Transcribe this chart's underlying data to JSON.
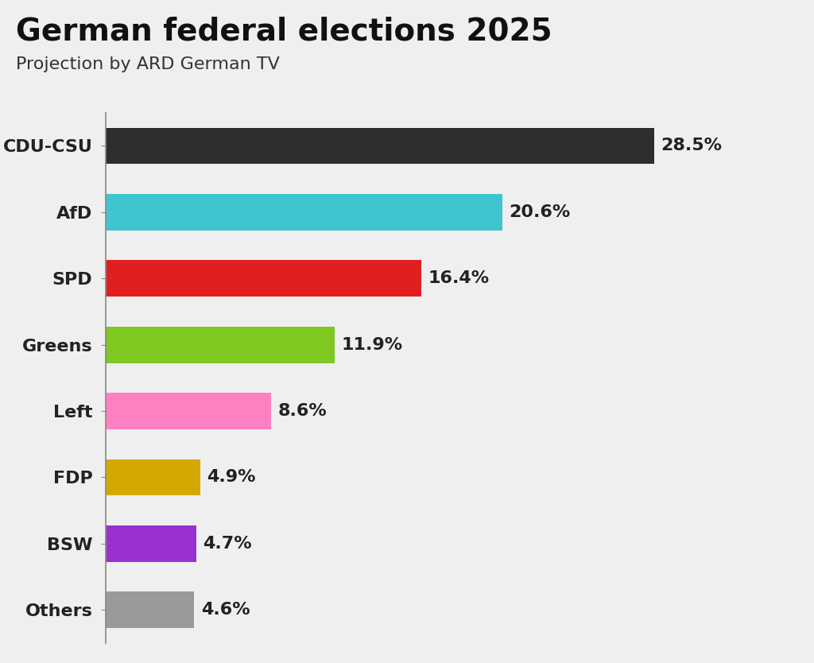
{
  "title": "German federal elections 2025",
  "subtitle": "Projection by ARD German TV",
  "categories": [
    "CDU-CSU",
    "AfD",
    "SPD",
    "Greens",
    "Left",
    "FDP",
    "BSW",
    "Others"
  ],
  "values": [
    28.5,
    20.6,
    16.4,
    11.9,
    8.6,
    4.9,
    4.7,
    4.6
  ],
  "labels": [
    "28.5%",
    "20.6%",
    "16.4%",
    "11.9%",
    "8.6%",
    "4.9%",
    "4.7%",
    "4.6%"
  ],
  "colors": [
    "#2e2e2e",
    "#40c4d0",
    "#e02020",
    "#7ec820",
    "#ff80c0",
    "#d4a800",
    "#9b30d0",
    "#9a9a9a"
  ],
  "background_color": "#efefef",
  "title_fontsize": 28,
  "subtitle_fontsize": 16,
  "label_fontsize": 16,
  "category_fontsize": 16,
  "xlim": [
    0,
    33
  ],
  "bar_height": 0.55
}
